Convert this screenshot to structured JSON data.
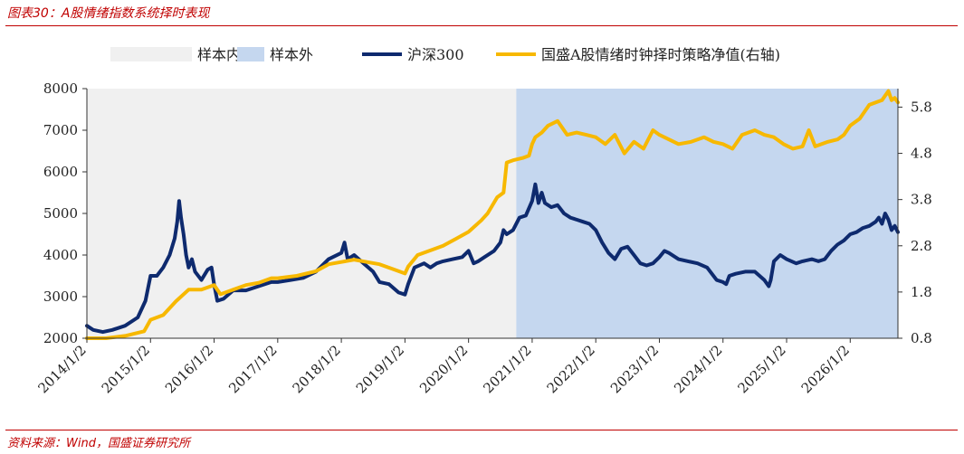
{
  "caption": "图表30：A股情绪指数系统择时表现",
  "source": "资料来源：Wind，国盛证券研究所",
  "colors": {
    "in_sample": "#f0f0f0",
    "out_sample": "#c5d7ef",
    "hs300": "#0e2a6e",
    "strategy": "#f7b800",
    "caption": "#c00000"
  },
  "chart_data": {
    "type": "line",
    "legend": [
      "样本内",
      "样本外",
      "沪深300",
      "国盛A股情绪时钟择时策略净值(右轴)"
    ],
    "legend_position": "top",
    "grid": false,
    "x_ticks": [
      "2014/1/2",
      "2015/1/2",
      "2016/1/2",
      "2017/1/2",
      "2018/1/2",
      "2019/1/2",
      "2020/1/2",
      "2021/1/2",
      "2022/1/2",
      "2023/1/2",
      "2024/1/2",
      "2025/1/2",
      "2026/1/2"
    ],
    "x_range": [
      2014.0,
      2026.75
    ],
    "y_left": {
      "ticks": [
        "2000",
        "3000",
        "4000",
        "5000",
        "6000",
        "7000",
        "8000"
      ],
      "range": [
        2000,
        8000
      ]
    },
    "y_right": {
      "ticks": [
        "0.8",
        "1.8",
        "2.8",
        "3.8",
        "4.8",
        "5.8"
      ],
      "range": [
        0.8,
        6.2
      ]
    },
    "shaded_regions": [
      {
        "name": "样本内",
        "from": 2014.0,
        "to": 2020.75
      },
      {
        "name": "样本外",
        "from": 2020.75,
        "to": 2026.75
      }
    ],
    "series": [
      {
        "name": "沪深300",
        "axis": "left",
        "x": [
          2014.0,
          2014.1,
          2014.25,
          2014.4,
          2014.6,
          2014.8,
          2014.92,
          2015.0,
          2015.1,
          2015.2,
          2015.3,
          2015.38,
          2015.42,
          2015.45,
          2015.48,
          2015.52,
          2015.56,
          2015.6,
          2015.65,
          2015.7,
          2015.8,
          2015.9,
          2015.96,
          2016.0,
          2016.05,
          2016.15,
          2016.3,
          2016.5,
          2016.7,
          2016.9,
          2017.0,
          2017.2,
          2017.4,
          2017.6,
          2017.8,
          2018.0,
          2018.05,
          2018.1,
          2018.2,
          2018.35,
          2018.5,
          2018.6,
          2018.75,
          2018.9,
          2019.0,
          2019.05,
          2019.15,
          2019.3,
          2019.4,
          2019.5,
          2019.6,
          2019.75,
          2019.9,
          2020.0,
          2020.08,
          2020.15,
          2020.25,
          2020.4,
          2020.5,
          2020.55,
          2020.6,
          2020.7,
          2020.8,
          2020.9,
          2021.0,
          2021.05,
          2021.1,
          2021.15,
          2021.2,
          2021.3,
          2021.4,
          2021.5,
          2021.6,
          2021.7,
          2021.8,
          2021.9,
          2022.0,
          2022.1,
          2022.2,
          2022.3,
          2022.4,
          2022.5,
          2022.6,
          2022.7,
          2022.8,
          2022.9,
          2023.0,
          2023.08,
          2023.15,
          2023.3,
          2023.45,
          2023.6,
          2023.75,
          2023.9,
          2024.0,
          2024.05,
          2024.1,
          2024.2,
          2024.35,
          2024.5,
          2024.65,
          2024.72,
          2024.75,
          2024.8,
          2024.9,
          2025.0,
          2025.15,
          2025.25,
          2025.4,
          2025.5,
          2025.6,
          2025.7,
          2025.8,
          2025.9,
          2026.0,
          2026.1,
          2026.2,
          2026.3,
          2026.4,
          2026.45,
          2026.5,
          2026.55,
          2026.6,
          2026.65,
          2026.7,
          2026.75
        ],
        "y": [
          2300,
          2200,
          2150,
          2200,
          2300,
          2500,
          2900,
          3500,
          3500,
          3700,
          4000,
          4400,
          4800,
          5300,
          4900,
          4500,
          4000,
          3700,
          3900,
          3600,
          3400,
          3650,
          3700,
          3300,
          2900,
          2950,
          3150,
          3150,
          3250,
          3350,
          3350,
          3400,
          3450,
          3600,
          3900,
          4050,
          4300,
          3900,
          4000,
          3800,
          3600,
          3350,
          3300,
          3100,
          3050,
          3300,
          3700,
          3800,
          3700,
          3800,
          3850,
          3900,
          3950,
          4100,
          3800,
          3850,
          3950,
          4100,
          4300,
          4600,
          4500,
          4600,
          4900,
          4950,
          5300,
          5700,
          5250,
          5500,
          5250,
          5150,
          5200,
          5000,
          4900,
          4850,
          4800,
          4750,
          4600,
          4300,
          4050,
          3900,
          4150,
          4200,
          4000,
          3800,
          3750,
          3800,
          3950,
          4100,
          4050,
          3900,
          3850,
          3800,
          3700,
          3400,
          3350,
          3300,
          3500,
          3550,
          3600,
          3600,
          3400,
          3250,
          3400,
          3850,
          4000,
          3900,
          3800,
          3850,
          3900,
          3850,
          3900,
          4100,
          4250,
          4350,
          4500,
          4550,
          4650,
          4700,
          4800,
          4900,
          4750,
          5000,
          4850,
          4600,
          4700,
          4550
        ]
      },
      {
        "name": "国盛A股情绪时钟择时策略净值(右轴)",
        "axis": "right",
        "x": [
          2014.0,
          2014.3,
          2014.6,
          2014.9,
          2015.0,
          2015.2,
          2015.4,
          2015.6,
          2015.8,
          2016.0,
          2016.1,
          2016.3,
          2016.5,
          2016.7,
          2016.9,
          2017.0,
          2017.3,
          2017.6,
          2017.8,
          2018.0,
          2018.2,
          2018.4,
          2018.6,
          2018.8,
          2019.0,
          2019.05,
          2019.2,
          2019.4,
          2019.6,
          2019.8,
          2020.0,
          2020.2,
          2020.3,
          2020.45,
          2020.55,
          2020.6,
          2020.7,
          2020.85,
          2020.95,
          2021.0,
          2021.05,
          2021.15,
          2021.25,
          2021.4,
          2021.55,
          2021.7,
          2021.85,
          2022.0,
          2022.15,
          2022.3,
          2022.45,
          2022.6,
          2022.75,
          2022.9,
          2023.0,
          2023.15,
          2023.3,
          2023.5,
          2023.7,
          2023.85,
          2024.0,
          2024.15,
          2024.3,
          2024.5,
          2024.65,
          2024.8,
          2024.95,
          2025.1,
          2025.25,
          2025.35,
          2025.45,
          2025.55,
          2025.65,
          2025.8,
          2025.9,
          2026.0,
          2026.15,
          2026.3,
          2026.5,
          2026.6,
          2026.65,
          2026.7,
          2026.75
        ],
        "y": [
          0.8,
          0.8,
          0.85,
          0.95,
          1.2,
          1.3,
          1.6,
          1.85,
          1.85,
          1.95,
          1.75,
          1.85,
          1.95,
          2.0,
          2.1,
          2.1,
          2.15,
          2.25,
          2.4,
          2.45,
          2.5,
          2.45,
          2.4,
          2.3,
          2.2,
          2.35,
          2.6,
          2.7,
          2.8,
          2.95,
          3.1,
          3.35,
          3.5,
          3.85,
          3.95,
          4.6,
          4.65,
          4.7,
          4.75,
          5.0,
          5.15,
          5.25,
          5.4,
          5.5,
          5.2,
          5.25,
          5.2,
          5.15,
          5.0,
          5.2,
          4.8,
          5.05,
          4.9,
          5.3,
          5.2,
          5.1,
          5.0,
          5.05,
          5.15,
          5.05,
          5.0,
          4.9,
          5.2,
          5.3,
          5.2,
          5.15,
          5.0,
          4.9,
          4.95,
          5.3,
          4.95,
          5.0,
          5.05,
          5.1,
          5.2,
          5.4,
          5.55,
          5.85,
          5.95,
          6.15,
          5.95,
          6.0,
          5.9
        ]
      }
    ]
  }
}
